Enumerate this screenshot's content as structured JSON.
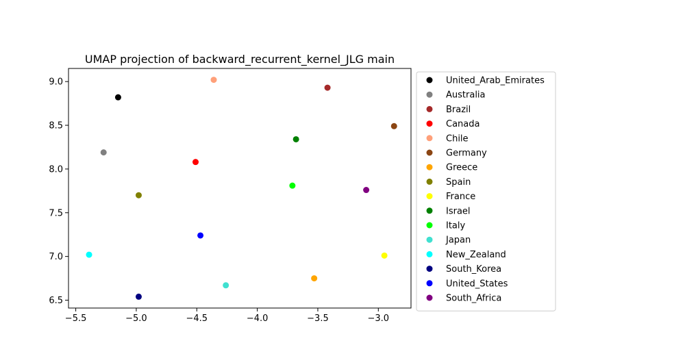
{
  "chart_data": {
    "type": "scatter",
    "title": "UMAP projection of backward_recurrent_kernel_JLG main",
    "xlabel": "",
    "ylabel": "",
    "xlim": [
      -5.56,
      -2.73
    ],
    "ylim": [
      6.41,
      9.15
    ],
    "xticks": [
      -5.5,
      -5.0,
      -4.5,
      -4.0,
      -3.5,
      -3.0
    ],
    "xtick_labels": [
      "−5.5",
      "−5.0",
      "−4.5",
      "−4.0",
      "−3.5",
      "−3.0"
    ],
    "yticks": [
      6.5,
      7.0,
      7.5,
      8.0,
      8.5,
      9.0
    ],
    "ytick_labels": [
      "6.5",
      "7.0",
      "7.5",
      "8.0",
      "8.5",
      "9.0"
    ],
    "grid": false,
    "legend_position": "outside-right",
    "series": [
      {
        "name": "United_Arab_Emirates",
        "color": "#000000",
        "x": -5.15,
        "y": 8.82
      },
      {
        "name": "Australia",
        "color": "#808080",
        "x": -5.27,
        "y": 8.19
      },
      {
        "name": "Brazil",
        "color": "#a52a2a",
        "x": -3.42,
        "y": 8.93
      },
      {
        "name": "Canada",
        "color": "#ff0000",
        "x": -4.51,
        "y": 8.08
      },
      {
        "name": "Chile",
        "color": "#ffa07a",
        "x": -4.36,
        "y": 9.02
      },
      {
        "name": "Germany",
        "color": "#8b4513",
        "x": -2.87,
        "y": 8.49
      },
      {
        "name": "Greece",
        "color": "#ffa500",
        "x": -3.53,
        "y": 6.75
      },
      {
        "name": "Spain",
        "color": "#808000",
        "x": -4.98,
        "y": 7.7
      },
      {
        "name": "France",
        "color": "#ffff00",
        "x": -2.95,
        "y": 7.01
      },
      {
        "name": "Israel",
        "color": "#008000",
        "x": -3.68,
        "y": 8.34
      },
      {
        "name": "Italy",
        "color": "#00ff00",
        "x": -3.71,
        "y": 7.81
      },
      {
        "name": "Japan",
        "color": "#40e0d0",
        "x": -4.26,
        "y": 6.67
      },
      {
        "name": "New_Zealand",
        "color": "#00ffff",
        "x": -5.39,
        "y": 7.02
      },
      {
        "name": "South_Korea",
        "color": "#000080",
        "x": -4.98,
        "y": 6.54
      },
      {
        "name": "United_States",
        "color": "#0000ff",
        "x": -4.47,
        "y": 7.24
      },
      {
        "name": "South_Africa",
        "color": "#800080",
        "x": -3.1,
        "y": 7.76
      }
    ]
  }
}
